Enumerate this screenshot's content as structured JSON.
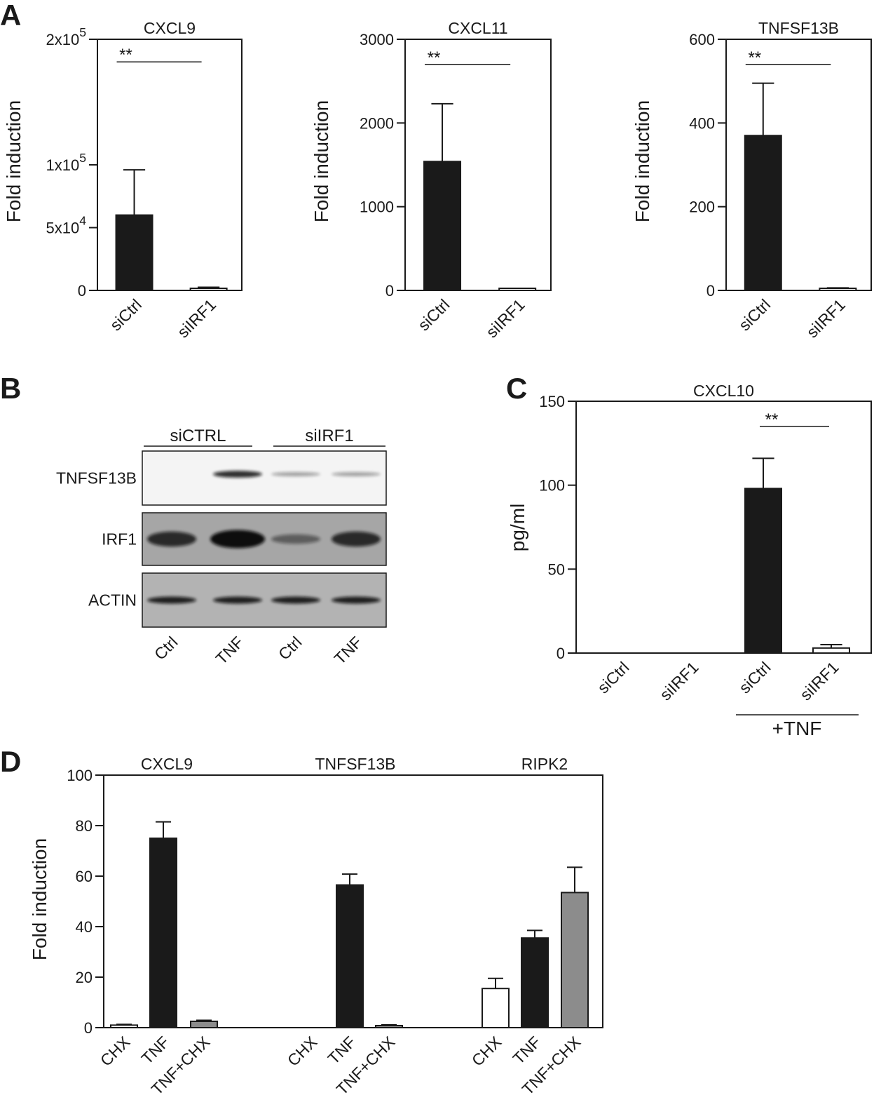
{
  "panel_letters": [
    "A",
    "B",
    "C",
    "D"
  ],
  "colors": {
    "black": "#1a1a1a",
    "white": "#ffffff",
    "gray": "#8c8c8c",
    "blot_light": "#f2f2f2",
    "blot_dark": "#a8a8a8"
  },
  "chart_data": [
    {
      "panel": "A",
      "type": "bar",
      "title": "CXCL9",
      "ylabel": "Fold induction",
      "ylim": [
        0,
        200000
      ],
      "yticks": [
        {
          "v": 0,
          "base": "0",
          "exp": ""
        },
        {
          "v": 50000,
          "base": "5x10",
          "exp": "4"
        },
        {
          "v": 100000,
          "base": "1x10",
          "exp": "5"
        },
        {
          "v": 200000,
          "base": "2x10",
          "exp": "5"
        }
      ],
      "categories": [
        "siCtrl",
        "siIRF1"
      ],
      "values": [
        60000,
        1500
      ],
      "errors": [
        36000,
        1000
      ],
      "fills": [
        "black",
        "white"
      ],
      "significance": {
        "label": "**",
        "from": 0,
        "to": 1,
        "y": 182000
      }
    },
    {
      "panel": "A",
      "type": "bar",
      "title": "CXCL11",
      "ylabel": "Fold induction",
      "ylim": [
        0,
        3000
      ],
      "yticks": [
        {
          "v": 0,
          "base": "0",
          "exp": ""
        },
        {
          "v": 1000,
          "base": "1000",
          "exp": ""
        },
        {
          "v": 2000,
          "base": "2000",
          "exp": ""
        },
        {
          "v": 3000,
          "base": "3000",
          "exp": ""
        }
      ],
      "categories": [
        "siCtrl",
        "siIRF1"
      ],
      "values": [
        1540,
        5
      ],
      "errors": [
        690,
        3
      ],
      "fills": [
        "black",
        "white"
      ],
      "significance": {
        "label": "**",
        "from": 0,
        "to": 1,
        "y": 2700
      }
    },
    {
      "panel": "A",
      "type": "bar",
      "title": "TNFSF13B",
      "ylabel": "Fold induction",
      "ylim": [
        0,
        600
      ],
      "yticks": [
        {
          "v": 0,
          "base": "0",
          "exp": ""
        },
        {
          "v": 200,
          "base": "200",
          "exp": ""
        },
        {
          "v": 400,
          "base": "400",
          "exp": ""
        },
        {
          "v": 600,
          "base": "600",
          "exp": ""
        }
      ],
      "categories": [
        "siCtrl",
        "siIRF1"
      ],
      "values": [
        370,
        4
      ],
      "errors": [
        125,
        2
      ],
      "fills": [
        "black",
        "white"
      ],
      "significance": {
        "label": "**",
        "from": 0,
        "to": 1,
        "y": 540
      }
    },
    {
      "panel": "C",
      "type": "bar",
      "title": "CXCL10",
      "ylabel": "pg/ml",
      "ylim": [
        0,
        150
      ],
      "yticks": [
        {
          "v": 0,
          "base": "0",
          "exp": ""
        },
        {
          "v": 50,
          "base": "50",
          "exp": ""
        },
        {
          "v": 100,
          "base": "100",
          "exp": ""
        },
        {
          "v": 150,
          "base": "150",
          "exp": ""
        }
      ],
      "categories": [
        "siCtrl",
        "siIRF1",
        "siCtrl",
        "siIRF1"
      ],
      "values": [
        0,
        0,
        98,
        3
      ],
      "errors": [
        0,
        0,
        18,
        2
      ],
      "fills": [
        "black",
        "white",
        "black",
        "white"
      ],
      "significance": {
        "label": "**",
        "from": 2,
        "to": 3,
        "y": 135
      },
      "group_label": {
        "label": "+TNF",
        "from": 2,
        "to": 3
      }
    },
    {
      "panel": "D",
      "type": "bar",
      "ylabel": "Fold induction",
      "ylim": [
        0,
        100
      ],
      "yticks": [
        {
          "v": 0,
          "base": "0",
          "exp": ""
        },
        {
          "v": 20,
          "base": "20",
          "exp": ""
        },
        {
          "v": 40,
          "base": "40",
          "exp": ""
        },
        {
          "v": 60,
          "base": "60",
          "exp": ""
        },
        {
          "v": 80,
          "base": "80",
          "exp": ""
        },
        {
          "v": 100,
          "base": "100",
          "exp": ""
        }
      ],
      "groups": [
        {
          "title": "CXCL9",
          "categories": [
            "CHX",
            "TNF",
            "TNF+CHX"
          ],
          "values": [
            1,
            75,
            2.5
          ],
          "errors": [
            0.3,
            6.5,
            0.4
          ]
        },
        {
          "title": "TNFSF13B",
          "categories": [
            "CHX",
            "TNF",
            "TNF+CHX"
          ],
          "values": [
            0,
            56.5,
            0.8
          ],
          "errors": [
            0,
            4.3,
            0.3
          ]
        },
        {
          "title": "RIPK2",
          "categories": [
            "CHX",
            "TNF",
            "TNF+CHX"
          ],
          "values": [
            15.5,
            35.5,
            53.5
          ],
          "errors": [
            4,
            3,
            10
          ]
        }
      ],
      "fills": [
        "white",
        "black",
        "gray"
      ]
    }
  ],
  "blot": {
    "groups": [
      {
        "label": "siCTRL"
      },
      {
        "label": "siIRF1"
      }
    ],
    "rows": [
      {
        "label": "TNFSF13B",
        "bands": [
          0,
          0.8,
          0.15,
          0.15
        ]
      },
      {
        "label": "IRF1",
        "bands": [
          0.75,
          1.0,
          0.3,
          0.75
        ]
      },
      {
        "label": "ACTIN",
        "bands": [
          0.85,
          0.85,
          0.85,
          0.85
        ]
      }
    ],
    "lanes": [
      "Ctrl",
      "TNF",
      "Ctrl",
      "TNF"
    ]
  }
}
